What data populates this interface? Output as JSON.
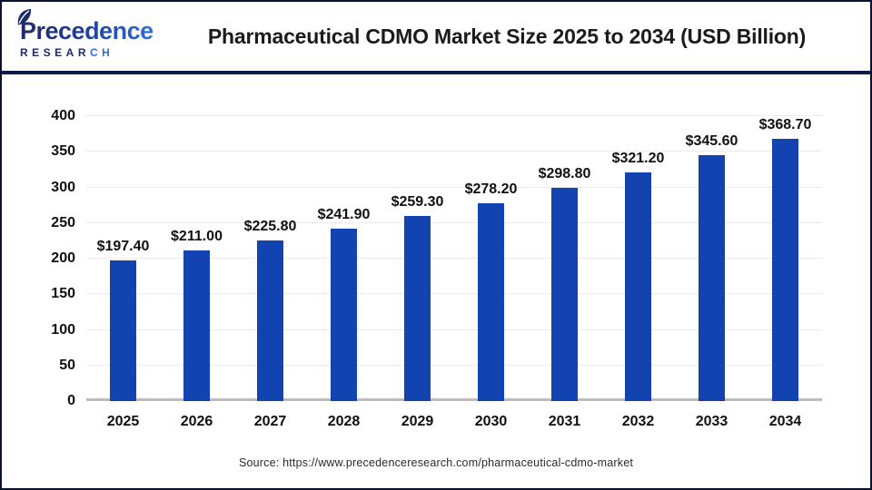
{
  "header": {
    "logo": {
      "wordmark": "Precedence",
      "research_main": "RESEAR",
      "research_accent": "CH"
    },
    "title": "Pharmaceutical CDMO Market Size 2025 to 2034 (USD Billion)"
  },
  "chart_data": {
    "type": "bar",
    "title": "Pharmaceutical CDMO Market Size 2025 to 2034 (USD Billion)",
    "categories": [
      "2025",
      "2026",
      "2027",
      "2028",
      "2029",
      "2030",
      "2031",
      "2032",
      "2033",
      "2034"
    ],
    "values": [
      197.4,
      211.0,
      225.8,
      241.9,
      259.3,
      278.2,
      298.8,
      321.2,
      345.6,
      368.7
    ],
    "value_labels": [
      "$197.40",
      "$211.00",
      "$225.80",
      "$241.90",
      "$259.30",
      "$278.20",
      "$298.80",
      "$321.20",
      "$345.60",
      "$368.70"
    ],
    "xlabel": "",
    "ylabel": "",
    "ylim": [
      0,
      400
    ],
    "yticks": [
      0,
      50,
      100,
      150,
      200,
      250,
      300,
      350,
      400
    ],
    "grid": true,
    "legend": "none",
    "bar_color": "#1343b0"
  },
  "footer": {
    "source": "Source: https://www.precedenceresearch.com/pharmaceutical-cdmo-market"
  },
  "colors": {
    "bar": "#1343b0",
    "divider_navy": "#0e1b4a",
    "logo_navy": "#1b2b6b",
    "logo_blue": "#2e6fdb",
    "gridline": "#ebebeb",
    "axis_line": "#bcbcbc",
    "text": "#111111"
  }
}
